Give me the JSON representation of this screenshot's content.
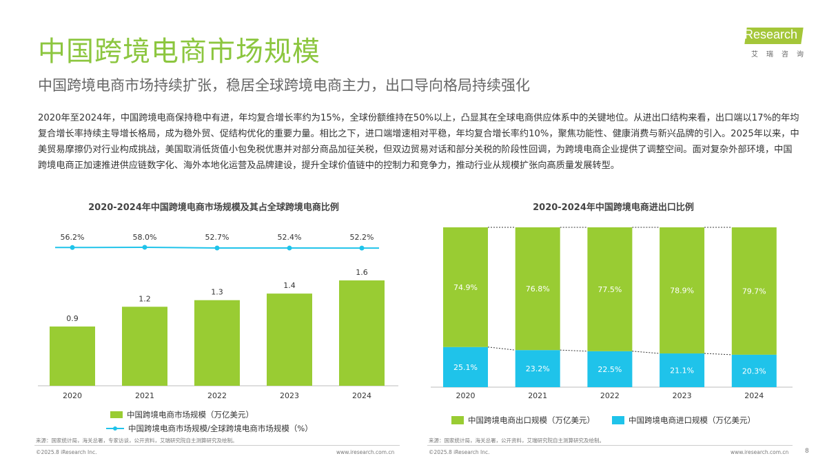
{
  "header": {
    "title": "中国跨境电商市场规模",
    "subtitle": "中国跨境电商市场持续扩张，稳居全球跨境电商主力，出口导向格局持续强化",
    "body": "2020年至2024年，中国跨境电商保持稳中有进，年均复合增长率约为15%，全球份额维持在50%以上，凸显其在全球电商供应体系中的关键地位。从进出口结构来看，出口端以17%的年均复合增长率持续主导增长格局，成为稳外贸、促结构优化的重要力量。相比之下，进口端增速相对平稳，年均复合增长率约10%，聚焦功能性、健康消费与新兴品牌的引入。2025年以来，中美贸易摩擦仍对行业构成挑战，美国取消低货值小包免税优惠并对部分商品加征关税，但双边贸易对话和部分关税的阶段性回调，为跨境电商企业提供了调整空间。面对复杂外部环境，中国跨境电商正加速推进供应链数字化、海外本地化运营及品牌建设，提升全球价值链中的控制力和竞争力，推动行业从规模扩张向高质量发展转型。"
  },
  "logo": {
    "brand": "iResearch",
    "sub": "艾瑞咨询"
  },
  "colors": {
    "green": "#99cc33",
    "cyan": "#1fc3ea",
    "title": "#8cc63f"
  },
  "chart_data": [
    {
      "type": "bar",
      "title": "2020-2024年中国跨境电商市场规模及其占全球跨境电商比例",
      "categories": [
        "2020",
        "2021",
        "2022",
        "2023",
        "2024"
      ],
      "series": [
        {
          "name": "中国跨境电商市场规模（万亿美元）",
          "type": "bar",
          "values": [
            0.9,
            1.2,
            1.3,
            1.4,
            1.6
          ],
          "labels": [
            "0.9",
            "1.2",
            "1.3",
            "1.4",
            "1.6"
          ]
        },
        {
          "name": "中国跨境电商市场规模/全球跨境电商市场规模（%）",
          "type": "line",
          "values": [
            56.2,
            58.0,
            52.7,
            52.4,
            52.2
          ],
          "labels": [
            "56.2%",
            "58.0%",
            "52.7%",
            "52.4%",
            "52.2%"
          ]
        }
      ],
      "legend": "bottom",
      "source": "来源：国家统计局，海关总署，专家访谈，公开资料，艾瑞研究院自主测算研究及绘制。"
    },
    {
      "type": "bar",
      "stacked": true,
      "title": "2020-2024年中国跨境电商进出口比例",
      "categories": [
        "2020",
        "2021",
        "2022",
        "2023",
        "2024"
      ],
      "series": [
        {
          "name": "中国跨境电商进口规模（万亿美元）",
          "values": [
            25.1,
            23.2,
            22.5,
            21.1,
            20.3
          ],
          "labels": [
            "25.1%",
            "23.2%",
            "22.5%",
            "21.1%",
            "20.3%"
          ]
        },
        {
          "name": "中国跨境电商出口规模（万亿美元）",
          "values": [
            74.9,
            76.8,
            77.5,
            78.9,
            79.7
          ],
          "labels": [
            "74.9%",
            "76.8%",
            "77.5%",
            "78.9%",
            "79.7%"
          ]
        }
      ],
      "legend": "bottom",
      "source": "来源：国家统计局，海关总署，公开资料，艾瑞研究院自主测算研究及绘制。"
    }
  ],
  "footer": {
    "copyright": "©2025.8 iResearch Inc.",
    "url": "www.iresearch.com.cn",
    "page": "8"
  }
}
